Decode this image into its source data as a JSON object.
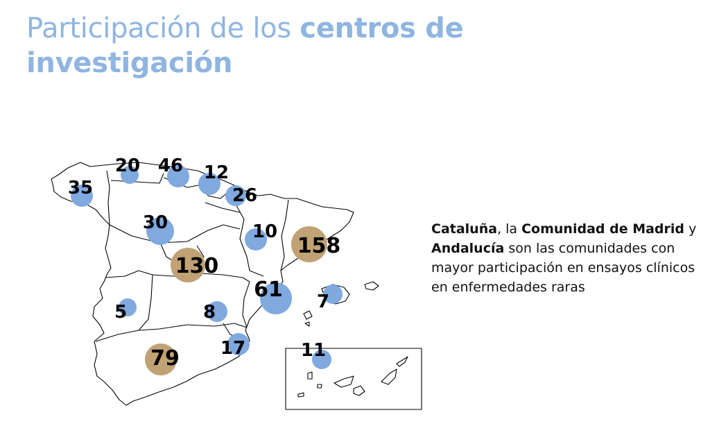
{
  "title": {
    "light": "Participación de los ",
    "bold_1": "centros de",
    "bold_2": "investigación"
  },
  "colors": {
    "title": "#8fb5e0",
    "bubble_regular": "#7fa9df",
    "bubble_highlight": "#c0a274",
    "map_outline": "#000000"
  },
  "regions": [
    {
      "name": "Galicia",
      "value": "35",
      "highlight": false
    },
    {
      "name": "Asturias",
      "value": "20",
      "highlight": false
    },
    {
      "name": "Cantabria/País Vasco",
      "value": "46",
      "highlight": false
    },
    {
      "name": "Navarra",
      "value": "12",
      "highlight": false
    },
    {
      "name": "La Rioja",
      "value": "26",
      "highlight": false
    },
    {
      "name": "Castilla y León",
      "value": "30",
      "highlight": false
    },
    {
      "name": "Aragón",
      "value": "10",
      "highlight": false
    },
    {
      "name": "Cataluña",
      "value": "158",
      "highlight": true
    },
    {
      "name": "Comunidad de Madrid",
      "value": "130",
      "highlight": true
    },
    {
      "name": "Comunidad Valenciana",
      "value": "61",
      "highlight": false
    },
    {
      "name": "Islas Baleares",
      "value": "7",
      "highlight": false
    },
    {
      "name": "Extremadura",
      "value": "5",
      "highlight": false
    },
    {
      "name": "Castilla-La Mancha",
      "value": "8",
      "highlight": false
    },
    {
      "name": "Región de Murcia",
      "value": "17",
      "highlight": false
    },
    {
      "name": "Andalucía",
      "value": "79",
      "highlight": true
    },
    {
      "name": "Canarias",
      "value": "11",
      "highlight": false
    }
  ],
  "text": {
    "b1": "Cataluña",
    "t1": ", la ",
    "b2": "Comunidad de Madrid",
    "t2": " y ",
    "b3": "Andalucía",
    "t3": " son las comunidades con mayor participación en ensayos clínicos en enfermedades raras"
  }
}
